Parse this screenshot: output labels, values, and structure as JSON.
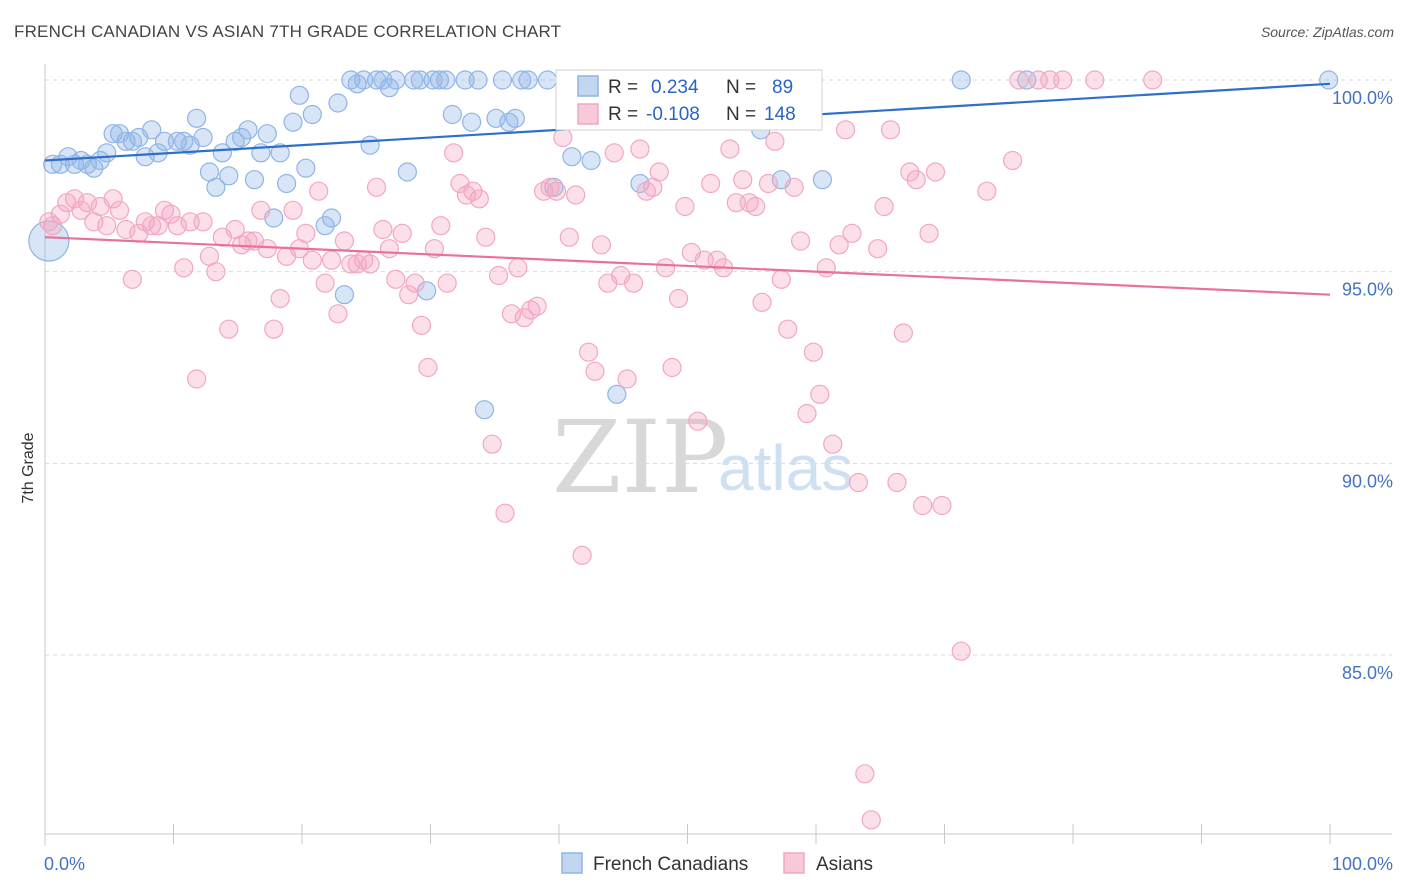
{
  "title": "FRENCH CANADIAN VS ASIAN 7TH GRADE CORRELATION CHART",
  "source": "Source: ZipAtlas.com",
  "watermark": {
    "zip": "ZIP",
    "atlas": "atlas"
  },
  "colors": {
    "blue": "#8fb4e6",
    "blue_line": "#2f6fc9",
    "pink": "#f3a6c2",
    "pink_line": "#e8719a",
    "tick_text": "#4472c4",
    "grid": "#d9d9d9"
  },
  "legend": {
    "rows": [
      {
        "r_label": "R =",
        "r_value": "0.234",
        "n_label": "N =",
        "n_value": "89",
        "color": "blue"
      },
      {
        "r_label": "R =",
        "r_value": "-0.108",
        "n_label": "N =",
        "n_value": "148",
        "color": "pink"
      }
    ]
  },
  "bottom_legend": [
    "French Canadians",
    "Asians"
  ],
  "chart_data": {
    "type": "scatter",
    "title": "FRENCH CANADIAN VS ASIAN 7TH GRADE CORRELATION CHART",
    "xlabel": "",
    "ylabel": "7th Grade",
    "xlim": [
      0,
      100
    ],
    "ylim": [
      80.5,
      100.7
    ],
    "x_ticks": [
      "0.0%",
      "100.0%"
    ],
    "y_ticks": [
      {
        "value": 100,
        "label": "100.0%"
      },
      {
        "value": 95,
        "label": "95.0%"
      },
      {
        "value": 90,
        "label": "90.0%"
      },
      {
        "value": 85,
        "label": "85.0%"
      }
    ],
    "grid": true,
    "legend_position": "top-center",
    "series": [
      {
        "name": "French Canadians",
        "color": "#8fb4e6",
        "trend": {
          "x": [
            0,
            100
          ],
          "y": [
            97.9,
            99.9
          ]
        },
        "points": [
          [
            0.3,
            95.8
          ],
          [
            0.6,
            97.8
          ],
          [
            1.2,
            97.8
          ],
          [
            1.8,
            98.0
          ],
          [
            2.3,
            97.8
          ],
          [
            2.8,
            97.9
          ],
          [
            3.3,
            97.8
          ],
          [
            3.8,
            97.7
          ],
          [
            4.3,
            97.9
          ],
          [
            4.8,
            98.1
          ],
          [
            5.3,
            98.6
          ],
          [
            5.8,
            98.6
          ],
          [
            6.3,
            98.4
          ],
          [
            6.8,
            98.4
          ],
          [
            7.3,
            98.5
          ],
          [
            7.8,
            98.0
          ],
          [
            8.3,
            98.7
          ],
          [
            8.8,
            98.1
          ],
          [
            9.3,
            98.4
          ],
          [
            10.3,
            98.4
          ],
          [
            10.8,
            98.4
          ],
          [
            11.3,
            98.3
          ],
          [
            11.8,
            99.0
          ],
          [
            12.3,
            98.5
          ],
          [
            12.8,
            97.6
          ],
          [
            13.3,
            97.2
          ],
          [
            13.8,
            98.1
          ],
          [
            14.3,
            97.5
          ],
          [
            14.8,
            98.4
          ],
          [
            15.3,
            98.5
          ],
          [
            15.8,
            98.7
          ],
          [
            16.3,
            97.4
          ],
          [
            16.8,
            98.1
          ],
          [
            17.3,
            98.6
          ],
          [
            17.8,
            96.4
          ],
          [
            18.3,
            98.1
          ],
          [
            18.8,
            97.3
          ],
          [
            19.3,
            98.9
          ],
          [
            19.8,
            99.6
          ],
          [
            20.3,
            97.7
          ],
          [
            20.8,
            99.1
          ],
          [
            21.8,
            96.2
          ],
          [
            22.3,
            96.4
          ],
          [
            22.8,
            99.4
          ],
          [
            23.3,
            94.4
          ],
          [
            23.8,
            100.0
          ],
          [
            24.3,
            99.9
          ],
          [
            24.8,
            100.0
          ],
          [
            25.3,
            98.3
          ],
          [
            25.8,
            100.0
          ],
          [
            26.3,
            100.0
          ],
          [
            26.8,
            99.8
          ],
          [
            27.3,
            100.0
          ],
          [
            28.2,
            97.6
          ],
          [
            28.7,
            100.0
          ],
          [
            29.2,
            100.0
          ],
          [
            29.7,
            94.5
          ],
          [
            30.2,
            100.0
          ],
          [
            30.7,
            100.0
          ],
          [
            31.2,
            100.0
          ],
          [
            31.7,
            99.1
          ],
          [
            32.7,
            100.0
          ],
          [
            33.2,
            98.9
          ],
          [
            33.7,
            100.0
          ],
          [
            34.2,
            91.4
          ],
          [
            35.1,
            99.0
          ],
          [
            35.6,
            100.0
          ],
          [
            36.1,
            98.9
          ],
          [
            36.6,
            99.0
          ],
          [
            37.1,
            100.0
          ],
          [
            37.6,
            100.0
          ],
          [
            39.1,
            100.0
          ],
          [
            39.6,
            97.2
          ],
          [
            40.5,
            100.0
          ],
          [
            41.0,
            98.0
          ],
          [
            42.5,
            97.9
          ],
          [
            44.5,
            91.8
          ],
          [
            46.3,
            97.3
          ],
          [
            46.8,
            100.0
          ],
          [
            47.8,
            100.0
          ],
          [
            50.5,
            100.0
          ],
          [
            51.5,
            100.0
          ],
          [
            53.5,
            100.0
          ],
          [
            55.7,
            98.7
          ],
          [
            57.3,
            97.4
          ],
          [
            59.2,
            100.0
          ],
          [
            60.5,
            97.4
          ],
          [
            71.3,
            100.0
          ],
          [
            76.4,
            100.0
          ],
          [
            99.9,
            100.0
          ]
        ]
      },
      {
        "name": "Asians",
        "color": "#f3a6c2",
        "trend": {
          "x": [
            0,
            100
          ],
          "y": [
            95.9,
            94.4
          ]
        },
        "points": [
          [
            0.3,
            96.3
          ],
          [
            0.6,
            96.2
          ],
          [
            1.2,
            96.5
          ],
          [
            1.7,
            96.8
          ],
          [
            2.3,
            96.9
          ],
          [
            2.8,
            96.6
          ],
          [
            3.3,
            96.8
          ],
          [
            3.8,
            96.3
          ],
          [
            4.3,
            96.7
          ],
          [
            4.8,
            96.2
          ],
          [
            5.3,
            96.9
          ],
          [
            5.8,
            96.6
          ],
          [
            6.3,
            96.1
          ],
          [
            6.8,
            94.8
          ],
          [
            7.3,
            96.0
          ],
          [
            7.8,
            96.3
          ],
          [
            8.3,
            96.2
          ],
          [
            8.8,
            96.2
          ],
          [
            9.3,
            96.6
          ],
          [
            9.8,
            96.5
          ],
          [
            10.3,
            96.2
          ],
          [
            10.8,
            95.1
          ],
          [
            11.3,
            96.3
          ],
          [
            11.8,
            92.2
          ],
          [
            12.3,
            96.3
          ],
          [
            12.8,
            95.4
          ],
          [
            13.3,
            95.0
          ],
          [
            13.8,
            95.9
          ],
          [
            14.3,
            93.5
          ],
          [
            14.8,
            96.1
          ],
          [
            15.3,
            95.7
          ],
          [
            15.8,
            95.8
          ],
          [
            16.3,
            95.8
          ],
          [
            16.8,
            96.6
          ],
          [
            17.3,
            95.6
          ],
          [
            17.8,
            93.5
          ],
          [
            18.3,
            94.3
          ],
          [
            18.8,
            95.4
          ],
          [
            19.3,
            96.6
          ],
          [
            19.8,
            95.6
          ],
          [
            20.3,
            96.0
          ],
          [
            20.8,
            95.3
          ],
          [
            21.3,
            97.1
          ],
          [
            21.8,
            94.7
          ],
          [
            22.3,
            95.3
          ],
          [
            22.8,
            93.9
          ],
          [
            23.3,
            95.8
          ],
          [
            23.8,
            95.2
          ],
          [
            24.3,
            95.2
          ],
          [
            24.8,
            95.3
          ],
          [
            25.3,
            95.2
          ],
          [
            25.8,
            97.2
          ],
          [
            26.3,
            96.1
          ],
          [
            26.8,
            95.6
          ],
          [
            27.3,
            94.8
          ],
          [
            27.8,
            96.0
          ],
          [
            28.3,
            94.4
          ],
          [
            28.8,
            94.7
          ],
          [
            29.3,
            93.6
          ],
          [
            29.8,
            92.5
          ],
          [
            30.3,
            95.6
          ],
          [
            30.8,
            96.2
          ],
          [
            31.3,
            94.7
          ],
          [
            31.8,
            98.1
          ],
          [
            32.3,
            97.3
          ],
          [
            32.8,
            97.0
          ],
          [
            33.3,
            97.1
          ],
          [
            33.8,
            96.9
          ],
          [
            34.3,
            95.9
          ],
          [
            34.8,
            90.5
          ],
          [
            35.3,
            94.9
          ],
          [
            35.8,
            88.7
          ],
          [
            36.3,
            93.9
          ],
          [
            36.8,
            95.1
          ],
          [
            37.3,
            93.8
          ],
          [
            37.8,
            94.0
          ],
          [
            38.3,
            94.1
          ],
          [
            38.8,
            97.1
          ],
          [
            39.3,
            97.2
          ],
          [
            39.8,
            97.1
          ],
          [
            40.3,
            98.5
          ],
          [
            40.8,
            95.9
          ],
          [
            41.3,
            97.0
          ],
          [
            41.8,
            87.6
          ],
          [
            42.3,
            92.9
          ],
          [
            42.8,
            92.4
          ],
          [
            43.3,
            95.7
          ],
          [
            43.8,
            94.7
          ],
          [
            44.3,
            98.1
          ],
          [
            44.8,
            94.9
          ],
          [
            45.3,
            92.2
          ],
          [
            45.8,
            94.7
          ],
          [
            46.3,
            98.2
          ],
          [
            46.8,
            97.1
          ],
          [
            47.3,
            97.2
          ],
          [
            47.8,
            97.6
          ],
          [
            48.3,
            95.1
          ],
          [
            48.8,
            92.5
          ],
          [
            49.3,
            94.3
          ],
          [
            49.8,
            96.7
          ],
          [
            50.3,
            95.5
          ],
          [
            50.8,
            91.1
          ],
          [
            51.3,
            95.3
          ],
          [
            51.8,
            97.3
          ],
          [
            52.3,
            95.3
          ],
          [
            52.8,
            95.1
          ],
          [
            53.3,
            98.2
          ],
          [
            53.8,
            96.8
          ],
          [
            54.3,
            97.4
          ],
          [
            54.8,
            96.8
          ],
          [
            55.3,
            96.7
          ],
          [
            55.8,
            94.2
          ],
          [
            56.3,
            97.3
          ],
          [
            56.8,
            98.4
          ],
          [
            57.3,
            94.8
          ],
          [
            57.8,
            93.5
          ],
          [
            58.3,
            97.2
          ],
          [
            58.8,
            95.8
          ],
          [
            59.3,
            91.3
          ],
          [
            59.8,
            92.9
          ],
          [
            60.3,
            91.8
          ],
          [
            60.8,
            95.1
          ],
          [
            61.3,
            90.5
          ],
          [
            61.8,
            95.7
          ],
          [
            62.3,
            98.7
          ],
          [
            62.8,
            96.0
          ],
          [
            63.3,
            89.5
          ],
          [
            63.8,
            81.9
          ],
          [
            64.3,
            80.7
          ],
          [
            64.8,
            95.6
          ],
          [
            65.3,
            96.7
          ],
          [
            65.8,
            98.7
          ],
          [
            66.3,
            89.5
          ],
          [
            66.8,
            93.4
          ],
          [
            67.3,
            97.6
          ],
          [
            67.8,
            97.4
          ],
          [
            68.3,
            88.9
          ],
          [
            68.8,
            96.0
          ],
          [
            69.3,
            97.6
          ],
          [
            69.8,
            88.9
          ],
          [
            71.3,
            85.1
          ],
          [
            73.3,
            97.1
          ],
          [
            75.3,
            97.9
          ],
          [
            75.8,
            100.0
          ],
          [
            77.3,
            100.0
          ],
          [
            78.2,
            100.0
          ],
          [
            79.2,
            100.0
          ],
          [
            81.7,
            100.0
          ],
          [
            86.2,
            100.0
          ]
        ]
      }
    ]
  }
}
